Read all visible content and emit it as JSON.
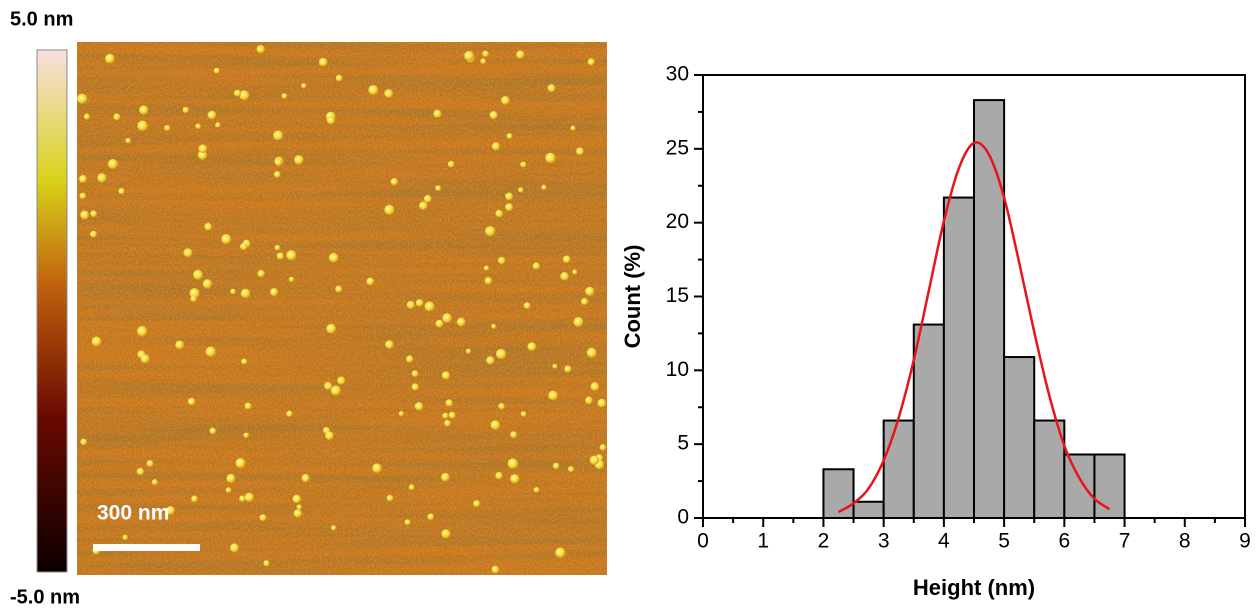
{
  "colorbar": {
    "max_label": "5.0 nm",
    "min_label": "-5.0 nm"
  },
  "afm_image": {
    "scale_bar_label": "300 nm"
  },
  "chart_data": {
    "type": "histogram",
    "xlabel": "Height (nm)",
    "ylabel": "Count (%)",
    "bins": [
      2,
      2.5,
      3,
      3.5,
      4,
      4.5,
      5,
      5.5,
      6,
      6.5,
      7
    ],
    "values": [
      3.3,
      1.1,
      6.6,
      13.1,
      21.7,
      28.3,
      10.9,
      6.6,
      4.3,
      4.3
    ],
    "color": "#a9a9a9",
    "fit": {
      "color": "#e8141c",
      "x": [
        2.25,
        2.5,
        2.75,
        3,
        3.25,
        3.5,
        3.75,
        4,
        4.25,
        4.5,
        4.75,
        5,
        5.25,
        5.5,
        5.75,
        6,
        6.25,
        6.5,
        6.75
      ],
      "values": [
        0.4,
        1.0,
        2.0,
        3.9,
        6.8,
        10.7,
        15.4,
        20.1,
        23.7,
        25.4,
        24.6,
        21.7,
        17.3,
        12.6,
        8.3,
        4.9,
        2.7,
        1.3,
        0.6
      ]
    },
    "xlim": [
      0,
      9
    ],
    "xticks": [
      0,
      1,
      2,
      3,
      4,
      5,
      6,
      7,
      8,
      9
    ],
    "ylim": [
      0,
      30
    ],
    "yticks": [
      0,
      5,
      10,
      15,
      20,
      25,
      30
    ]
  }
}
